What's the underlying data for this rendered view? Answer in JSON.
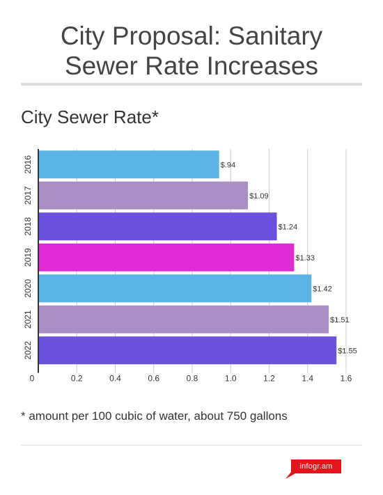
{
  "title": "City Proposal: Sanitary Sewer Rate Increases",
  "subtitle": "City Sewer Rate*",
  "footnote": "* amount per 100 cubic of water, about 750 gallons",
  "brand": "infogr.am",
  "colors": {
    "brand": "#e4151b",
    "gridline": "#cccccc",
    "axis": "#333333"
  },
  "chart_data": {
    "type": "bar",
    "orientation": "horizontal",
    "categories": [
      "2016",
      "2017",
      "2018",
      "2019",
      "2020",
      "2021",
      "2022"
    ],
    "values": [
      0.94,
      1.09,
      1.24,
      1.33,
      1.42,
      1.51,
      1.55
    ],
    "data_labels": [
      "$.94",
      "$1.09",
      "$1.24",
      "$1.33",
      "$1.42",
      "$1.51",
      "$1.55"
    ],
    "bar_colors": [
      "#5ab4e5",
      "#aa8fc7",
      "#6b51de",
      "#de2bd6",
      "#5ab4e5",
      "#aa8fc7",
      "#6b51de"
    ],
    "xlim": [
      0,
      1.6
    ],
    "x_ticks": [
      0,
      0.2,
      0.4,
      0.6,
      0.8,
      1.0,
      1.2,
      1.4,
      1.6
    ],
    "x_tick_labels": [
      "0",
      "0.2",
      "0.4",
      "0.6",
      "0.8",
      "1.0",
      "1.2",
      "1.4",
      "1.6"
    ],
    "title": "City Sewer Rate*",
    "xlabel": "",
    "ylabel": "",
    "grid": true,
    "legend": "none"
  }
}
